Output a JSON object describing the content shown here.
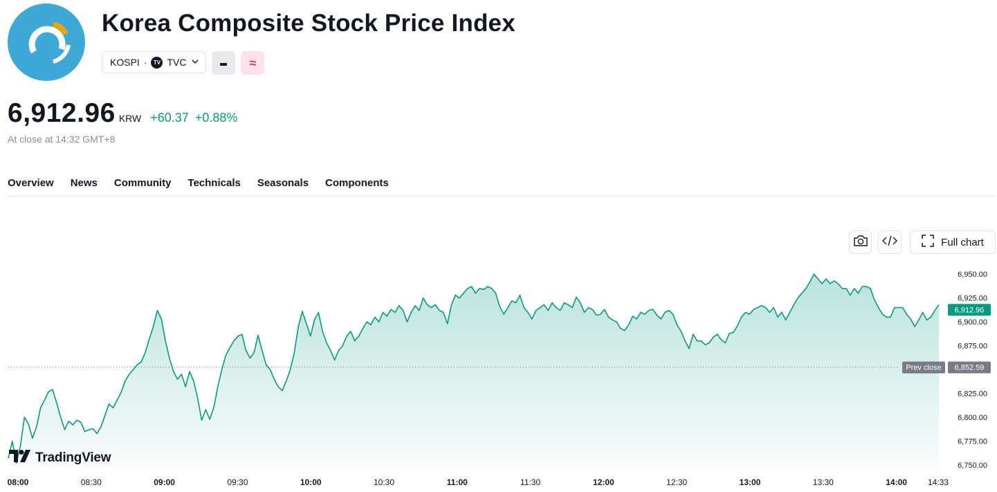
{
  "header": {
    "title": "Korea Composite Stock Price Index",
    "symbol": "KOSPI",
    "separator": "·",
    "exchange": "TVC",
    "exchange_badge": "TV",
    "logo_color": "#3ea8d6"
  },
  "quote": {
    "price": "6,912.96",
    "currency": "KRW",
    "change": "+60.37",
    "change_percent": "+0.88%",
    "close_note": "At close at 14:32 GMT+8",
    "positive_color": "#089981"
  },
  "tabs": [
    {
      "label": "Overview",
      "active": true
    },
    {
      "label": "News",
      "active": false
    },
    {
      "label": "Community",
      "active": false
    },
    {
      "label": "Technicals",
      "active": false
    },
    {
      "label": "Seasonals",
      "active": false
    },
    {
      "label": "Components",
      "active": false
    }
  ],
  "toolbar": {
    "full_chart_label": "Full chart",
    "screenshot_icon": "camera-icon",
    "embed_icon": "code-icon",
    "fullscreen_icon": "expand-icon"
  },
  "brand": {
    "name": "TradingView"
  },
  "chart_data": {
    "type": "area",
    "title": "",
    "xlabel": "",
    "ylabel": "",
    "ylim": [
      6745,
      6960
    ],
    "y_ticks": [
      {
        "value": 6950,
        "label": "6,950.00"
      },
      {
        "value": 6925,
        "label": "6,925.00"
      },
      {
        "value": 6900,
        "label": "6,900.00"
      },
      {
        "value": 6875,
        "label": "6,875.00"
      },
      {
        "value": 6825,
        "label": "6,825.00"
      },
      {
        "value": 6800,
        "label": "6,800.00"
      },
      {
        "value": 6775,
        "label": "6,775.00"
      },
      {
        "value": 6750,
        "label": "6,750.00"
      }
    ],
    "x_ticks": [
      {
        "label": "08:00",
        "bold": true,
        "minute": 0
      },
      {
        "label": "08:30",
        "bold": false,
        "minute": 30
      },
      {
        "label": "09:00",
        "bold": true,
        "minute": 60
      },
      {
        "label": "09:30",
        "bold": false,
        "minute": 90
      },
      {
        "label": "10:00",
        "bold": true,
        "minute": 120
      },
      {
        "label": "10:30",
        "bold": false,
        "minute": 150
      },
      {
        "label": "11:00",
        "bold": true,
        "minute": 180
      },
      {
        "label": "11:30",
        "bold": false,
        "minute": 210
      },
      {
        "label": "12:00",
        "bold": true,
        "minute": 240
      },
      {
        "label": "12:30",
        "bold": false,
        "minute": 270
      },
      {
        "label": "13:00",
        "bold": true,
        "minute": 300
      },
      {
        "label": "13:30",
        "bold": false,
        "minute": 330
      },
      {
        "label": "14:00",
        "bold": true,
        "minute": 360
      },
      {
        "label": "14:33",
        "bold": false,
        "minute": 393
      }
    ],
    "last_price": {
      "value": 6912.96,
      "label": "6,912.96"
    },
    "prev_close": {
      "value": 6852.59,
      "label": "6,852.59",
      "name": "Prev close"
    },
    "line_color": "#089981",
    "series": [
      {
        "values": [
          [
            0,
            6757
          ],
          [
            1,
            6775
          ],
          [
            2,
            6752
          ],
          [
            3,
            6770
          ],
          [
            4,
            6800
          ],
          [
            5,
            6793
          ],
          [
            6,
            6778
          ],
          [
            7,
            6790
          ],
          [
            8,
            6810
          ],
          [
            9,
            6818
          ],
          [
            10,
            6827
          ],
          [
            11,
            6829
          ],
          [
            12,
            6815
          ],
          [
            13,
            6800
          ],
          [
            14,
            6787
          ],
          [
            15,
            6796
          ],
          [
            16,
            6792
          ],
          [
            17,
            6797
          ],
          [
            18,
            6795
          ],
          [
            19,
            6785
          ],
          [
            20,
            6787
          ],
          [
            21,
            6788
          ],
          [
            22,
            6783
          ],
          [
            23,
            6790
          ],
          [
            24,
            6802
          ],
          [
            25,
            6814
          ],
          [
            26,
            6810
          ],
          [
            27,
            6818
          ],
          [
            28,
            6826
          ],
          [
            29,
            6838
          ],
          [
            30,
            6845
          ],
          [
            31,
            6850
          ],
          [
            32,
            6855
          ],
          [
            33,
            6858
          ],
          [
            34,
            6868
          ],
          [
            35,
            6882
          ],
          [
            36,
            6895
          ],
          [
            37,
            6912
          ],
          [
            38,
            6903
          ],
          [
            39,
            6880
          ],
          [
            40,
            6862
          ],
          [
            41,
            6848
          ],
          [
            42,
            6840
          ],
          [
            43,
            6845
          ],
          [
            44,
            6832
          ],
          [
            45,
            6848
          ],
          [
            46,
            6838
          ],
          [
            47,
            6820
          ],
          [
            48,
            6797
          ],
          [
            49,
            6808
          ],
          [
            50,
            6798
          ],
          [
            51,
            6810
          ],
          [
            52,
            6832
          ],
          [
            53,
            6850
          ],
          [
            54,
            6865
          ],
          [
            55,
            6873
          ],
          [
            56,
            6880
          ],
          [
            57,
            6885
          ],
          [
            58,
            6887
          ],
          [
            59,
            6870
          ],
          [
            60,
            6862
          ],
          [
            61,
            6868
          ],
          [
            62,
            6886
          ],
          [
            63,
            6870
          ],
          [
            64,
            6855
          ],
          [
            65,
            6850
          ],
          [
            66,
            6840
          ],
          [
            67,
            6832
          ],
          [
            68,
            6828
          ],
          [
            69,
            6838
          ],
          [
            70,
            6850
          ],
          [
            71,
            6868
          ],
          [
            72,
            6895
          ],
          [
            73,
            6911
          ],
          [
            74,
            6898
          ],
          [
            75,
            6885
          ],
          [
            76,
            6902
          ],
          [
            77,
            6910
          ],
          [
            78,
            6890
          ],
          [
            79,
            6878
          ],
          [
            80,
            6870
          ],
          [
            81,
            6860
          ],
          [
            82,
            6870
          ],
          [
            83,
            6875
          ],
          [
            84,
            6885
          ],
          [
            85,
            6890
          ],
          [
            86,
            6880
          ],
          [
            87,
            6885
          ],
          [
            88,
            6893
          ],
          [
            89,
            6900
          ],
          [
            90,
            6897
          ],
          [
            91,
            6905
          ],
          [
            92,
            6900
          ],
          [
            93,
            6910
          ],
          [
            94,
            6906
          ],
          [
            95,
            6913
          ],
          [
            96,
            6910
          ],
          [
            97,
            6917
          ],
          [
            98,
            6912
          ],
          [
            99,
            6900
          ],
          [
            100,
            6910
          ],
          [
            101,
            6917
          ],
          [
            102,
            6912
          ],
          [
            103,
            6925
          ],
          [
            104,
            6918
          ],
          [
            105,
            6915
          ],
          [
            106,
            6918
          ],
          [
            107,
            6912
          ],
          [
            108,
            6910
          ],
          [
            109,
            6898
          ],
          [
            110,
            6918
          ],
          [
            111,
            6928
          ],
          [
            112,
            6925
          ],
          [
            113,
            6930
          ],
          [
            114,
            6935
          ],
          [
            115,
            6937
          ],
          [
            116,
            6930
          ],
          [
            117,
            6935
          ],
          [
            118,
            6934
          ],
          [
            119,
            6937
          ],
          [
            120,
            6935
          ],
          [
            121,
            6930
          ],
          [
            122,
            6916
          ],
          [
            123,
            6908
          ],
          [
            124,
            6915
          ],
          [
            125,
            6922
          ],
          [
            126,
            6920
          ],
          [
            127,
            6928
          ],
          [
            128,
            6915
          ],
          [
            129,
            6910
          ],
          [
            130,
            6903
          ],
          [
            131,
            6912
          ],
          [
            132,
            6915
          ],
          [
            133,
            6918
          ],
          [
            134,
            6912
          ],
          [
            135,
            6920
          ],
          [
            136,
            6915
          ],
          [
            137,
            6912
          ],
          [
            138,
            6920
          ],
          [
            139,
            6918
          ],
          [
            140,
            6915
          ],
          [
            141,
            6926
          ],
          [
            142,
            6920
          ],
          [
            143,
            6910
          ],
          [
            144,
            6915
          ],
          [
            145,
            6913
          ],
          [
            146,
            6907
          ],
          [
            147,
            6908
          ],
          [
            148,
            6913
          ],
          [
            149,
            6905
          ],
          [
            150,
            6902
          ],
          [
            151,
            6900
          ],
          [
            152,
            6893
          ],
          [
            153,
            6891
          ],
          [
            154,
            6897
          ],
          [
            155,
            6906
          ],
          [
            156,
            6903
          ],
          [
            157,
            6910
          ],
          [
            158,
            6908
          ],
          [
            159,
            6912
          ],
          [
            160,
            6913
          ],
          [
            161,
            6907
          ],
          [
            162,
            6903
          ],
          [
            163,
            6910
          ],
          [
            164,
            6912
          ],
          [
            165,
            6908
          ],
          [
            166,
            6897
          ],
          [
            167,
            6890
          ],
          [
            168,
            6880
          ],
          [
            169,
            6872
          ],
          [
            170,
            6887
          ],
          [
            171,
            6880
          ],
          [
            172,
            6880
          ],
          [
            173,
            6876
          ],
          [
            174,
            6878
          ],
          [
            175,
            6884
          ],
          [
            176,
            6887
          ],
          [
            177,
            6881
          ],
          [
            178,
            6878
          ],
          [
            179,
            6888
          ],
          [
            180,
            6889
          ],
          [
            181,
            6896
          ],
          [
            182,
            6905
          ],
          [
            183,
            6910
          ],
          [
            184,
            6908
          ],
          [
            185,
            6913
          ],
          [
            186,
            6915
          ],
          [
            187,
            6917
          ],
          [
            188,
            6915
          ],
          [
            189,
            6910
          ],
          [
            190,
            6915
          ],
          [
            191,
            6905
          ],
          [
            192,
            6910
          ],
          [
            193,
            6902
          ],
          [
            194,
            6910
          ],
          [
            195,
            6918
          ],
          [
            196,
            6925
          ],
          [
            197,
            6930
          ],
          [
            198,
            6935
          ],
          [
            199,
            6942
          ],
          [
            200,
            6950
          ],
          [
            201,
            6945
          ],
          [
            202,
            6940
          ],
          [
            203,
            6945
          ],
          [
            204,
            6940
          ],
          [
            205,
            6943
          ],
          [
            206,
            6940
          ],
          [
            207,
            6935
          ],
          [
            208,
            6935
          ],
          [
            209,
            6928
          ],
          [
            210,
            6935
          ],
          [
            211,
            6930
          ],
          [
            212,
            6937
          ],
          [
            213,
            6937
          ],
          [
            214,
            6935
          ],
          [
            215,
            6923
          ],
          [
            216,
            6915
          ],
          [
            217,
            6908
          ],
          [
            218,
            6905
          ],
          [
            219,
            6905
          ],
          [
            220,
            6915
          ],
          [
            221,
            6915
          ],
          [
            222,
            6915
          ],
          [
            223,
            6908
          ],
          [
            224,
            6903
          ],
          [
            225,
            6895
          ],
          [
            226,
            6902
          ],
          [
            227,
            6910
          ],
          [
            228,
            6902
          ],
          [
            229,
            6905
          ],
          [
            230,
            6912
          ],
          [
            231,
            6918
          ]
        ]
      }
    ]
  }
}
